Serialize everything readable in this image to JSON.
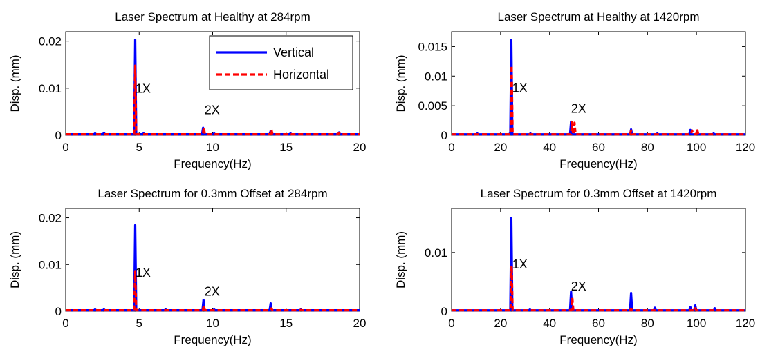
{
  "figure": {
    "legend": {
      "placement": "top-right of first panel",
      "entries": [
        {
          "label": "Vertical",
          "color": "#0000ff",
          "style": "solid"
        },
        {
          "label": "Horizontal",
          "color": "#ff0000",
          "style": "dashed"
        }
      ]
    }
  },
  "chart_data": [
    {
      "type": "line",
      "title": "Laser Spectrum at Healthy at 284rpm",
      "xlabel": "Frequency(Hz)",
      "ylabel": "Disp. (mm)",
      "xlim": [
        0,
        20
      ],
      "ylim": [
        0,
        0.022
      ],
      "xticks": [
        0,
        5,
        10,
        15,
        20
      ],
      "xtick_labels": [
        "0",
        "5",
        "10",
        "15",
        "20"
      ],
      "yticks": [
        0,
        0.01,
        0.02
      ],
      "ytick_labels": [
        "0",
        "0.01",
        "0.02"
      ],
      "grid": false,
      "legend": true,
      "annotations": [
        {
          "text": "1X",
          "x": 4.7,
          "y": 0.009
        },
        {
          "text": "2X",
          "x": 9.4,
          "y": 0.0045
        }
      ],
      "series": [
        {
          "name": "Vertical",
          "color": "#0000ff",
          "dash": false,
          "baseline": 0.0002,
          "peaks": [
            [
              2.0,
              0.0004
            ],
            [
              2.6,
              0.0005
            ],
            [
              4.73,
              0.0203
            ],
            [
              5.3,
              0.0004
            ],
            [
              9.35,
              0.0016
            ],
            [
              10.1,
              0.0004
            ],
            [
              13.95,
              0.0009
            ],
            [
              15.3,
              0.0004
            ],
            [
              18.6,
              0.0006
            ]
          ]
        },
        {
          "name": "Horizontal",
          "color": "#ff0000",
          "dash": true,
          "baseline": 0.0002,
          "peaks": [
            [
              4.73,
              0.0148
            ],
            [
              9.4,
              0.0017
            ],
            [
              14.0,
              0.0012
            ],
            [
              18.6,
              0.0005
            ]
          ]
        }
      ]
    },
    {
      "type": "line",
      "title": "Laser Spectrum at Healthy at 1420rpm",
      "xlabel": "Frequency(Hz)",
      "ylabel": "Disp. (mm)",
      "xlim": [
        0,
        120
      ],
      "ylim": [
        0,
        0.0175
      ],
      "xticks": [
        0,
        20,
        40,
        60,
        80,
        100,
        120
      ],
      "xtick_labels": [
        "0",
        "20",
        "40",
        "60",
        "80",
        "100",
        "120"
      ],
      "yticks": [
        0,
        0.005,
        0.01,
        0.015
      ],
      "ytick_labels": [
        "0",
        "0.005",
        "0.01",
        "0.015"
      ],
      "grid": false,
      "legend": false,
      "annotations": [
        {
          "text": "1X",
          "x": 24.5,
          "y": 0.0073
        },
        {
          "text": "2X",
          "x": 48.5,
          "y": 0.0038
        }
      ],
      "series": [
        {
          "name": "Vertical",
          "color": "#0000ff",
          "dash": false,
          "baseline": 0.00015,
          "peaks": [
            [
              10.5,
              0.0003
            ],
            [
              23.8,
              0.0003
            ],
            [
              24.4,
              0.0161
            ],
            [
              32.2,
              0.0003
            ],
            [
              48.8,
              0.0023
            ],
            [
              73.3,
              0.001
            ],
            [
              84.0,
              0.0003
            ],
            [
              97.5,
              0.0009
            ],
            [
              100.3,
              0.0007
            ],
            [
              107.0,
              0.0003
            ]
          ]
        },
        {
          "name": "Horizontal",
          "color": "#ff0000",
          "dash": true,
          "baseline": 0.00015,
          "peaks": [
            [
              24.5,
              0.0118
            ],
            [
              49.2,
              0.0022
            ],
            [
              50.2,
              0.0021
            ],
            [
              73.3,
              0.0008
            ],
            [
              98.2,
              0.0008
            ],
            [
              100.3,
              0.001
            ]
          ]
        }
      ]
    },
    {
      "type": "line",
      "title": "Laser Spectrum for 0.3mm Offset at 284rpm",
      "xlabel": "Frequency(Hz)",
      "ylabel": "Disp. (mm)",
      "xlim": [
        0,
        20
      ],
      "ylim": [
        0,
        0.022
      ],
      "xticks": [
        0,
        5,
        10,
        15,
        20
      ],
      "xtick_labels": [
        "0",
        "5",
        "10",
        "15",
        "20"
      ],
      "yticks": [
        0,
        0.01,
        0.02
      ],
      "ytick_labels": [
        "0",
        "0.01",
        "0.02"
      ],
      "grid": false,
      "legend": false,
      "annotations": [
        {
          "text": "1X",
          "x": 4.7,
          "y": 0.0074
        },
        {
          "text": "2X",
          "x": 9.4,
          "y": 0.0033
        }
      ],
      "series": [
        {
          "name": "Vertical",
          "color": "#0000ff",
          "dash": false,
          "baseline": 0.0002,
          "peaks": [
            [
              2.0,
              0.0004
            ],
            [
              2.6,
              0.0004
            ],
            [
              4.73,
              0.0184
            ],
            [
              6.8,
              0.0004
            ],
            [
              9.38,
              0.0024
            ],
            [
              10.1,
              0.0004
            ],
            [
              13.95,
              0.0017
            ],
            [
              16.0,
              0.0004
            ]
          ]
        },
        {
          "name": "Horizontal",
          "color": "#ff0000",
          "dash": true,
          "baseline": 0.0002,
          "peaks": [
            [
              4.73,
              0.0086
            ],
            [
              9.4,
              0.0012
            ],
            [
              14.0,
              0.0006
            ],
            [
              16.0,
              0.0003
            ]
          ]
        }
      ]
    },
    {
      "type": "line",
      "title": "Laser Spectrum for 0.3mm Offset at 1420rpm",
      "xlabel": "Frequency(Hz)",
      "ylabel": "Disp. (mm)",
      "xlim": [
        0,
        120
      ],
      "ylim": [
        0,
        0.0175
      ],
      "xticks": [
        0,
        20,
        40,
        60,
        80,
        100,
        120
      ],
      "xtick_labels": [
        "0",
        "20",
        "40",
        "60",
        "80",
        "100",
        "120"
      ],
      "yticks": [
        0,
        0.01
      ],
      "ytick_labels": [
        "0",
        "0.01"
      ],
      "grid": false,
      "legend": false,
      "annotations": [
        {
          "text": "1X",
          "x": 24.5,
          "y": 0.0073
        },
        {
          "text": "2X",
          "x": 48.5,
          "y": 0.0035
        }
      ],
      "series": [
        {
          "name": "Vertical",
          "color": "#0000ff",
          "dash": false,
          "baseline": 0.00015,
          "peaks": [
            [
              24.4,
              0.0159
            ],
            [
              32.0,
              0.0003
            ],
            [
              48.8,
              0.0033
            ],
            [
              73.3,
              0.0031
            ],
            [
              83.0,
              0.0006
            ],
            [
              97.5,
              0.0007
            ],
            [
              99.5,
              0.001
            ],
            [
              107.5,
              0.0005
            ]
          ]
        },
        {
          "name": "Horizontal",
          "color": "#ff0000",
          "dash": true,
          "baseline": 0.00015,
          "peaks": [
            [
              24.5,
              0.0078
            ],
            [
              49.3,
              0.0023
            ],
            [
              73.3,
              0.0004
            ],
            [
              99.5,
              0.0005
            ]
          ]
        }
      ]
    }
  ]
}
